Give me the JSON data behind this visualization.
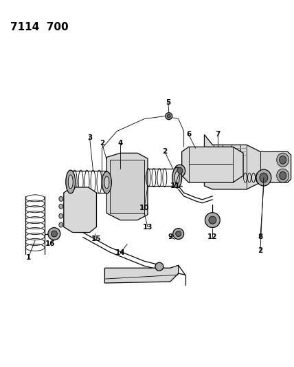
{
  "title": "7114  700",
  "bg_color": "#ffffff",
  "fig_width": 4.28,
  "fig_height": 5.33,
  "dpi": 100,
  "title_fontsize": 11,
  "label_fontsize": 7.5,
  "lw_thin": 0.6,
  "lw_med": 0.9,
  "lw_thick": 1.4,
  "gray_light": "#d8d8d8",
  "gray_mid": "#aaaaaa",
  "gray_dark": "#666666",
  "gray_engine": "#cccccc",
  "gray_filter": "#888888"
}
